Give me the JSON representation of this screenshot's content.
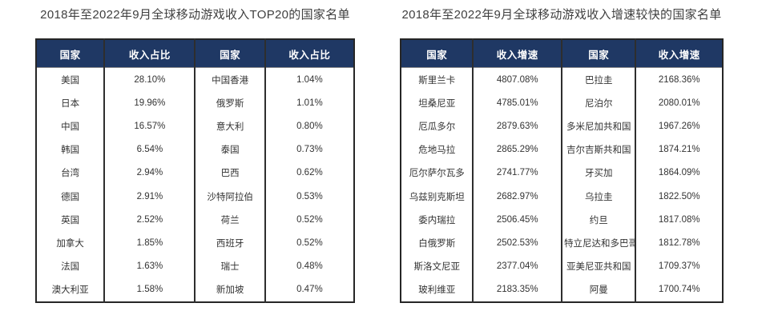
{
  "colors": {
    "header_bg": "#1f3864",
    "header_text": "#ffffff",
    "body_text": "#333333",
    "border": "#262626",
    "title_text": "#404040",
    "page_bg": "#ffffff"
  },
  "chart_data": [
    {
      "type": "table",
      "title": "2018年至2022年9月全球移动游戏收入TOP20的国家名单",
      "columns": [
        "国家",
        "收入占比",
        "国家",
        "收入占比"
      ],
      "rows": [
        [
          "美国",
          "28.10%",
          "中国香港",
          "1.04%"
        ],
        [
          "日本",
          "19.96%",
          "俄罗斯",
          "1.01%"
        ],
        [
          "中国",
          "16.57%",
          "意大利",
          "0.80%"
        ],
        [
          "韩国",
          "6.54%",
          "泰国",
          "0.73%"
        ],
        [
          "台湾",
          "2.94%",
          "巴西",
          "0.62%"
        ],
        [
          "德国",
          "2.91%",
          "沙特阿拉伯",
          "0.53%"
        ],
        [
          "英国",
          "2.52%",
          "荷兰",
          "0.52%"
        ],
        [
          "加拿大",
          "1.85%",
          "西班牙",
          "0.52%"
        ],
        [
          "法国",
          "1.63%",
          "瑞士",
          "0.48%"
        ],
        [
          "澳大利亚",
          "1.58%",
          "新加坡",
          "0.47%"
        ]
      ]
    },
    {
      "type": "table",
      "title": "2018年至2022年9月全球移动游戏收入增速较快的国家名单",
      "columns": [
        "国家",
        "收入增速",
        "国家",
        "收入增速"
      ],
      "rows": [
        [
          "斯里兰卡",
          "4807.08%",
          "巴拉圭",
          "2168.36%"
        ],
        [
          "坦桑尼亚",
          "4785.01%",
          "尼泊尔",
          "2080.01%"
        ],
        [
          "厄瓜多尔",
          "2879.63%",
          "多米尼加共和国",
          "1967.26%"
        ],
        [
          "危地马拉",
          "2865.29%",
          "吉尔吉斯共和国",
          "1874.21%"
        ],
        [
          "厄尔萨尔瓦多",
          "2741.77%",
          "牙买加",
          "1864.09%"
        ],
        [
          "乌兹别克斯坦",
          "2682.97%",
          "乌拉圭",
          "1822.50%"
        ],
        [
          "委内瑞拉",
          "2506.45%",
          "约旦",
          "1817.08%"
        ],
        [
          "白俄罗斯",
          "2502.53%",
          "特立尼达和多巴哥",
          "1812.78%"
        ],
        [
          "斯洛文尼亚",
          "2377.04%",
          "亚美尼亚共和国",
          "1709.37%"
        ],
        [
          "玻利维亚",
          "2183.35%",
          "阿曼",
          "1700.74%"
        ]
      ]
    }
  ]
}
